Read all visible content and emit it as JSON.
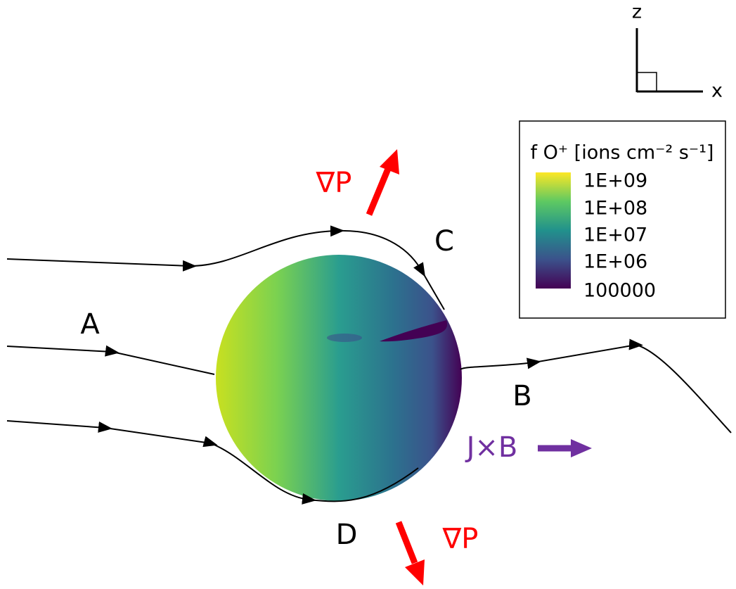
{
  "axes": {
    "z": "z",
    "x": "x"
  },
  "regions": {
    "a": "A",
    "b": "B",
    "c": "C",
    "d": "D"
  },
  "forces": {
    "pressure_top": "∇P",
    "pressure_bottom": "∇P",
    "jxb": "J×B"
  },
  "legend": {
    "title": "f O⁺ [ions cm⁻² s⁻¹]",
    "levels": [
      "1E+09",
      "1E+08",
      "1E+07",
      "1E+06",
      "100000"
    ]
  }
}
